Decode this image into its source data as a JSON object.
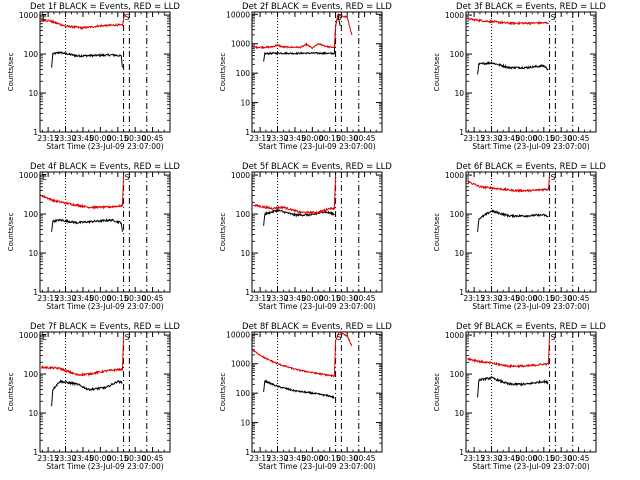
{
  "figure": {
    "background": "#ffffff",
    "series_colors": {
      "events": "#000000",
      "lld": "#e00000"
    }
  },
  "chart_data": [
    {
      "type": "line",
      "title": "Det 1f BLACK = Events, RED = LLD",
      "xlabel": "Start Time (23-Jul-09 23:07:00)",
      "ylabel": "Counts/sec",
      "y_scale": "log",
      "ylim": [
        1,
        1200
      ],
      "y_ticks": [
        "1",
        "10",
        "100",
        "1000"
      ],
      "x_ticks": [
        "23:15",
        "23:30",
        "23:45",
        "00:00",
        "00:15",
        "00:30",
        "00:45"
      ],
      "xlim_minutes": [
        -52,
        60
      ],
      "marker_top_left": "E",
      "marker_top_right": "S",
      "dotted_line_minutes": -30,
      "dashed_line_minutes": [
        20,
        25,
        40
      ],
      "series": [
        {
          "name": "BLACK = Events",
          "color": "#000000",
          "x_minutes": [
            -42,
            -41,
            -35,
            -20,
            -5,
            10,
            18,
            19
          ],
          "values": [
            45,
            100,
            110,
            90,
            92,
            95,
            90,
            45
          ]
        },
        {
          "name": "RED = LLD",
          "color": "#e00000",
          "x_minutes": [
            -51,
            -45,
            -30,
            -15,
            0,
            15,
            19,
            21
          ],
          "values": [
            740,
            730,
            520,
            470,
            530,
            560,
            540,
            1100
          ]
        }
      ]
    },
    {
      "type": "line",
      "title": "Det 2f BLACK = Events, RED = LLD",
      "xlabel": "Start Time (23-Jul-09 23:07:00)",
      "ylabel": "Counts/sec",
      "y_scale": "log",
      "ylim": [
        1,
        12000
      ],
      "y_ticks": [
        "1",
        "10",
        "100",
        "1000",
        "10000"
      ],
      "x_ticks": [
        "23:15",
        "23:30",
        "23:45",
        "00:00",
        "00:15",
        "00:30",
        "00:45"
      ],
      "xlim_minutes": [
        -52,
        60
      ],
      "marker_top_left": "",
      "marker_top_right": "S",
      "dotted_line_minutes": -30,
      "dashed_line_minutes": [
        20,
        25,
        40
      ],
      "series": [
        {
          "name": "BLACK = Events",
          "color": "#000000",
          "x_minutes": [
            -42,
            -41,
            -30,
            -15,
            0,
            15,
            19,
            20,
            22,
            24
          ],
          "values": [
            250,
            460,
            480,
            470,
            480,
            470,
            470,
            4000,
            9000,
            4000
          ]
        },
        {
          "name": "RED = LLD",
          "color": "#e00000",
          "x_minutes": [
            -51,
            -40,
            -35,
            -30,
            -25,
            -10,
            -5,
            0,
            5,
            15,
            19,
            20,
            22,
            30,
            34
          ],
          "values": [
            760,
            760,
            780,
            900,
            770,
            760,
            950,
            700,
            990,
            760,
            760,
            4000,
            9500,
            8000,
            2000
          ]
        }
      ]
    },
    {
      "type": "line",
      "title": "Det 3f BLACK = Events, RED = LLD",
      "xlabel": "Start Time (23-Jul-09 23:07:00)",
      "ylabel": "Counts/sec",
      "y_scale": "log",
      "ylim": [
        1,
        1200
      ],
      "y_ticks": [
        "1",
        "10",
        "100",
        "1000"
      ],
      "x_ticks": [
        "23:15",
        "23:30",
        "23:45",
        "00:00",
        "00:15",
        "00:30",
        "00:45"
      ],
      "xlim_minutes": [
        -52,
        60
      ],
      "marker_top_left": "",
      "marker_top_right": "S",
      "dotted_line_minutes": -30,
      "dashed_line_minutes": [
        20,
        25,
        40
      ],
      "series": [
        {
          "name": "BLACK = Events",
          "color": "#000000",
          "x_minutes": [
            -42,
            -41,
            -30,
            -15,
            0,
            15,
            19
          ],
          "values": [
            30,
            55,
            60,
            45,
            45,
            50,
            40
          ]
        },
        {
          "name": "RED = LLD",
          "color": "#e00000",
          "x_minutes": [
            -51,
            -35,
            -15,
            0,
            15,
            19
          ],
          "values": [
            800,
            700,
            620,
            620,
            630,
            630
          ]
        }
      ]
    },
    {
      "type": "line",
      "title": "Det 4f BLACK = Events, RED = LLD",
      "xlabel": "Start Time (23-Jul-09 23:07:00)",
      "ylabel": "Counts/sec",
      "y_scale": "log",
      "ylim": [
        1,
        1200
      ],
      "y_ticks": [
        "1",
        "10",
        "100",
        "1000"
      ],
      "x_ticks": [
        "23:15",
        "23:30",
        "23:45",
        "00:00",
        "00:15",
        "00:30",
        "00:45"
      ],
      "xlim_minutes": [
        -52,
        60
      ],
      "marker_top_left": "E",
      "marker_top_right": "S",
      "dotted_line_minutes": -30,
      "dashed_line_minutes": [
        20,
        25,
        40
      ],
      "series": [
        {
          "name": "BLACK = Events",
          "color": "#000000",
          "x_minutes": [
            -42,
            -41,
            -35,
            -20,
            -5,
            10,
            18,
            19
          ],
          "values": [
            35,
            65,
            70,
            60,
            65,
            70,
            60,
            35
          ]
        },
        {
          "name": "RED = LLD",
          "color": "#e00000",
          "x_minutes": [
            -51,
            -40,
            -25,
            -10,
            5,
            15,
            19,
            20
          ],
          "values": [
            300,
            220,
            180,
            150,
            150,
            160,
            160,
            1000
          ]
        }
      ]
    },
    {
      "type": "line",
      "title": "Det 5f BLACK = Events, RED = LLD",
      "xlabel": "Start Time (23-Jul-09 23:07:00)",
      "ylabel": "Counts/sec",
      "y_scale": "log",
      "ylim": [
        1,
        1200
      ],
      "y_ticks": [
        "1",
        "10",
        "100",
        "1000"
      ],
      "x_ticks": [
        "23:15",
        "23:30",
        "23:45",
        "00:00",
        "00:15",
        "00:30",
        "00:45"
      ],
      "xlim_minutes": [
        -52,
        60
      ],
      "marker_top_left": "",
      "marker_top_right": "",
      "dotted_line_minutes": -30,
      "dashed_line_minutes": [
        20,
        25,
        40
      ],
      "series": [
        {
          "name": "BLACK = Events",
          "color": "#000000",
          "x_minutes": [
            -42,
            -41,
            -30,
            -15,
            0,
            10,
            19
          ],
          "values": [
            50,
            100,
            125,
            95,
            95,
            115,
            100
          ]
        },
        {
          "name": "RED = LLD",
          "color": "#e00000",
          "x_minutes": [
            -51,
            -35,
            -25,
            -10,
            5,
            15,
            19,
            20
          ],
          "values": [
            170,
            140,
            150,
            110,
            110,
            140,
            140,
            1000
          ]
        }
      ]
    },
    {
      "type": "line",
      "title": "Det 6f BLACK = Events, RED = LLD",
      "xlabel": "Start Time (23-Jul-09 23:07:00)",
      "ylabel": "Counts/sec",
      "y_scale": "log",
      "ylim": [
        1,
        1200
      ],
      "y_ticks": [
        "1",
        "10",
        "100",
        "1000"
      ],
      "x_ticks": [
        "23:15",
        "23:30",
        "23:45",
        "00:00",
        "00:15",
        "00:30",
        "00:45"
      ],
      "xlim_minutes": [
        -52,
        60
      ],
      "marker_top_left": "",
      "marker_top_right": "S",
      "dotted_line_minutes": -30,
      "dashed_line_minutes": [
        20,
        25,
        40
      ],
      "series": [
        {
          "name": "BLACK = Events",
          "color": "#000000",
          "x_minutes": [
            -42,
            -41,
            -30,
            -15,
            0,
            15,
            19
          ],
          "values": [
            35,
            75,
            120,
            90,
            90,
            95,
            85
          ]
        },
        {
          "name": "RED = LLD",
          "color": "#e00000",
          "x_minutes": [
            -51,
            -40,
            -25,
            -10,
            5,
            15,
            19,
            20
          ],
          "values": [
            700,
            500,
            450,
            400,
            400,
            430,
            430,
            1000
          ]
        }
      ]
    },
    {
      "type": "line",
      "title": "Det 7f BLACK = Events, RED = LLD",
      "xlabel": "Start Time (23-Jul-09 23:07:00)",
      "ylabel": "Counts/sec",
      "y_scale": "log",
      "ylim": [
        1,
        1200
      ],
      "y_ticks": [
        "1",
        "10",
        "100",
        "1000"
      ],
      "x_ticks": [
        "23:15",
        "23:30",
        "23:45",
        "00:00",
        "00:15",
        "00:30",
        "00:45"
      ],
      "xlim_minutes": [
        -52,
        60
      ],
      "marker_top_left": "E",
      "marker_top_right": "S",
      "dotted_line_minutes": -30,
      "dashed_line_minutes": [
        20,
        25,
        40
      ],
      "series": [
        {
          "name": "BLACK = Events",
          "color": "#000000",
          "x_minutes": [
            -42,
            -41,
            -35,
            -20,
            -10,
            5,
            15,
            19
          ],
          "values": [
            15,
            40,
            65,
            55,
            40,
            45,
            65,
            60
          ]
        },
        {
          "name": "RED = LLD",
          "color": "#e00000",
          "x_minutes": [
            -51,
            -35,
            -20,
            -10,
            5,
            15,
            19,
            20
          ],
          "values": [
            150,
            140,
            95,
            100,
            120,
            130,
            130,
            1000
          ]
        }
      ]
    },
    {
      "type": "line",
      "title": "Det 8f BLACK = Events, RED = LLD",
      "xlabel": "Start Time (23-Jul-09 23:07:00)",
      "ylabel": "Counts/sec",
      "y_scale": "log",
      "ylim": [
        1,
        12000
      ],
      "y_ticks": [
        "1",
        "10",
        "100",
        "1000",
        "10000"
      ],
      "x_ticks": [
        "23:15",
        "23:30",
        "23:45",
        "00:00",
        "00:15",
        "00:30",
        "00:45"
      ],
      "xlim_minutes": [
        -52,
        60
      ],
      "marker_top_left": "",
      "marker_top_right": "S",
      "dotted_line_minutes": -30,
      "dashed_line_minutes": [
        20,
        25,
        40
      ],
      "series": [
        {
          "name": "BLACK = Events",
          "color": "#000000",
          "x_minutes": [
            -42,
            -41,
            -30,
            -15,
            0,
            15,
            19
          ],
          "values": [
            110,
            260,
            170,
            120,
            100,
            80,
            70
          ]
        },
        {
          "name": "RED = LLD",
          "color": "#e00000",
          "x_minutes": [
            -51,
            -40,
            -30,
            -15,
            0,
            15,
            19,
            20,
            23,
            30,
            34
          ],
          "values": [
            2800,
            1500,
            1000,
            650,
            500,
            400,
            380,
            6000,
            12000,
            9000,
            4000
          ]
        }
      ]
    },
    {
      "type": "line",
      "title": "Det 9f BLACK = Events, RED = LLD",
      "xlabel": "Start Time (23-Jul-09 23:07:00)",
      "ylabel": "Counts/sec",
      "y_scale": "log",
      "ylim": [
        1,
        1200
      ],
      "y_ticks": [
        "1",
        "10",
        "100",
        "1000"
      ],
      "x_ticks": [
        "23:15",
        "23:30",
        "23:45",
        "00:00",
        "00:15",
        "00:30",
        "00:45"
      ],
      "xlim_minutes": [
        -52,
        60
      ],
      "marker_top_left": "",
      "marker_top_right": "S",
      "dotted_line_minutes": -30,
      "dashed_line_minutes": [
        20,
        25,
        40
      ],
      "series": [
        {
          "name": "BLACK = Events",
          "color": "#000000",
          "x_minutes": [
            -42,
            -41,
            -30,
            -15,
            0,
            15,
            19
          ],
          "values": [
            25,
            70,
            80,
            55,
            55,
            65,
            60
          ]
        },
        {
          "name": "RED = LLD",
          "color": "#e00000",
          "x_minutes": [
            -51,
            -40,
            -30,
            -15,
            0,
            15,
            19,
            20
          ],
          "values": [
            250,
            210,
            190,
            160,
            160,
            180,
            180,
            1000
          ]
        }
      ]
    }
  ]
}
